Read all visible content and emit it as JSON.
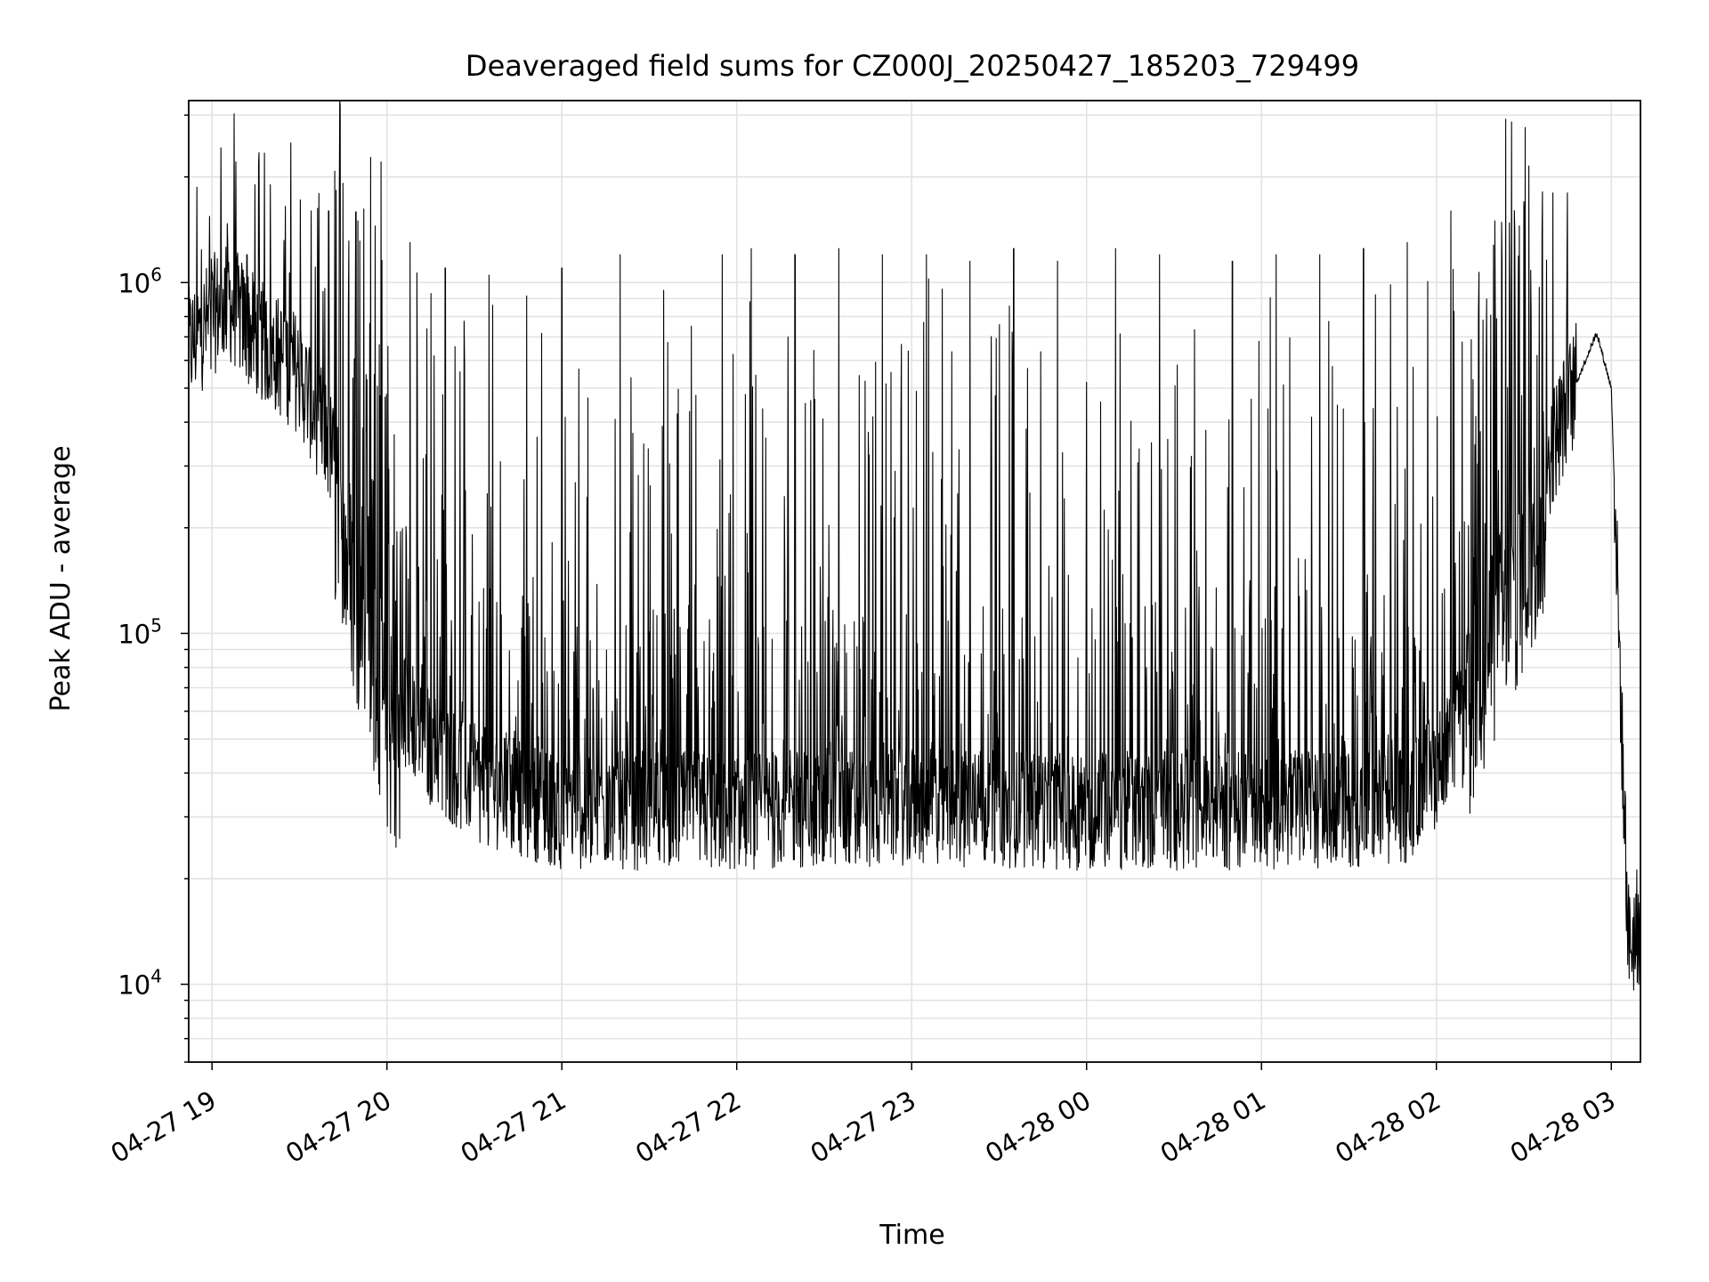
{
  "chart_data": {
    "type": "line",
    "title": "Deaveraged field sums for CZ000J_20250427_185203_729499",
    "xlabel": "Time",
    "ylabel": "Peak ADU - average",
    "yscale": "log",
    "xrange": [
      "04-27 18:52",
      "04-28 03:10"
    ],
    "ylim": [
      6000,
      3300000
    ],
    "grid": true,
    "color": "#000000",
    "x_ticks": [
      {
        "time": "04-27 19:00",
        "label": "04-27 19"
      },
      {
        "time": "04-27 20:00",
        "label": "04-27 20"
      },
      {
        "time": "04-27 21:00",
        "label": "04-27 21"
      },
      {
        "time": "04-27 22:00",
        "label": "04-27 22"
      },
      {
        "time": "04-27 23:00",
        "label": "04-27 23"
      },
      {
        "time": "04-28 00:00",
        "label": "04-28 00"
      },
      {
        "time": "04-28 01:00",
        "label": "04-28 01"
      },
      {
        "time": "04-28 02:00",
        "label": "04-28 02"
      },
      {
        "time": "04-28 03:00",
        "label": "04-28 03"
      }
    ],
    "y_ticks": [
      {
        "value": 10000,
        "base": "10",
        "exp": "4"
      },
      {
        "value": 100000,
        "base": "10",
        "exp": "5"
      },
      {
        "value": 1000000,
        "base": "10",
        "exp": "6"
      }
    ],
    "series": [
      {
        "baseline": [
          [
            "04-27 18:52",
            650000
          ],
          [
            "04-27 19:00",
            800000
          ],
          [
            "04-27 19:05",
            900000
          ],
          [
            "04-27 19:15",
            700000
          ],
          [
            "04-27 19:30",
            550000
          ],
          [
            "04-27 19:40",
            350000
          ],
          [
            "04-27 19:50",
            160000
          ],
          [
            "04-27 20:00",
            70000
          ],
          [
            "04-27 20:15",
            45000
          ],
          [
            "04-27 20:30",
            36000
          ],
          [
            "04-27 21:00",
            30000
          ],
          [
            "04-27 22:00",
            30000
          ],
          [
            "04-27 23:00",
            31000
          ],
          [
            "04-28 00:00",
            30000
          ],
          [
            "04-28 01:00",
            30000
          ],
          [
            "04-28 01:50",
            31000
          ],
          [
            "04-28 02:05",
            45000
          ],
          [
            "04-28 02:15",
            100000
          ],
          [
            "04-28 02:30",
            200000
          ],
          [
            "04-28 02:45",
            450000
          ],
          [
            "04-28 02:55",
            720000
          ],
          [
            "04-28 03:00",
            500000
          ],
          [
            "04-28 03:02",
            150000
          ],
          [
            "04-28 03:04",
            40000
          ],
          [
            "04-28 03:06",
            13000
          ],
          [
            "04-28 03:10",
            15000
          ]
        ],
        "spikes": [
          [
            "04-27 19:08",
            1300000
          ],
          [
            "04-27 19:12",
            1200000
          ],
          [
            "04-27 19:20",
            1900000
          ],
          [
            "04-27 19:27",
            2500000
          ],
          [
            "04-27 19:34",
            1600000
          ],
          [
            "04-27 19:40",
            1600000
          ],
          [
            "04-27 19:50",
            1500000
          ],
          [
            "04-27 19:56",
            1450000
          ],
          [
            "04-27 20:08",
            1300000
          ],
          [
            "04-27 20:20",
            1100000
          ],
          [
            "04-27 20:35",
            1050000
          ],
          [
            "04-27 21:00",
            1100000
          ],
          [
            "04-27 21:20",
            1200000
          ],
          [
            "04-27 21:35",
            950000
          ],
          [
            "04-27 21:55",
            1200000
          ],
          [
            "04-27 22:05",
            1250000
          ],
          [
            "04-27 22:20",
            1200000
          ],
          [
            "04-27 22:35",
            1250000
          ],
          [
            "04-27 22:50",
            1200000
          ],
          [
            "04-27 23:05",
            1200000
          ],
          [
            "04-27 23:20",
            1150000
          ],
          [
            "04-27 23:35",
            1250000
          ],
          [
            "04-27 23:50",
            1150000
          ],
          [
            "04-28 00:10",
            1250000
          ],
          [
            "04-28 00:25",
            1200000
          ],
          [
            "04-28 00:50",
            1150000
          ],
          [
            "04-28 01:05",
            1200000
          ],
          [
            "04-28 01:20",
            1200000
          ],
          [
            "04-28 01:35",
            1250000
          ],
          [
            "04-28 01:50",
            1300000
          ],
          [
            "04-28 02:05",
            1600000
          ],
          [
            "04-28 02:20",
            1500000
          ],
          [
            "04-28 02:30",
            1700000
          ],
          [
            "04-28 02:40",
            1800000
          ],
          [
            "04-28 02:45",
            1800000
          ]
        ]
      }
    ]
  }
}
